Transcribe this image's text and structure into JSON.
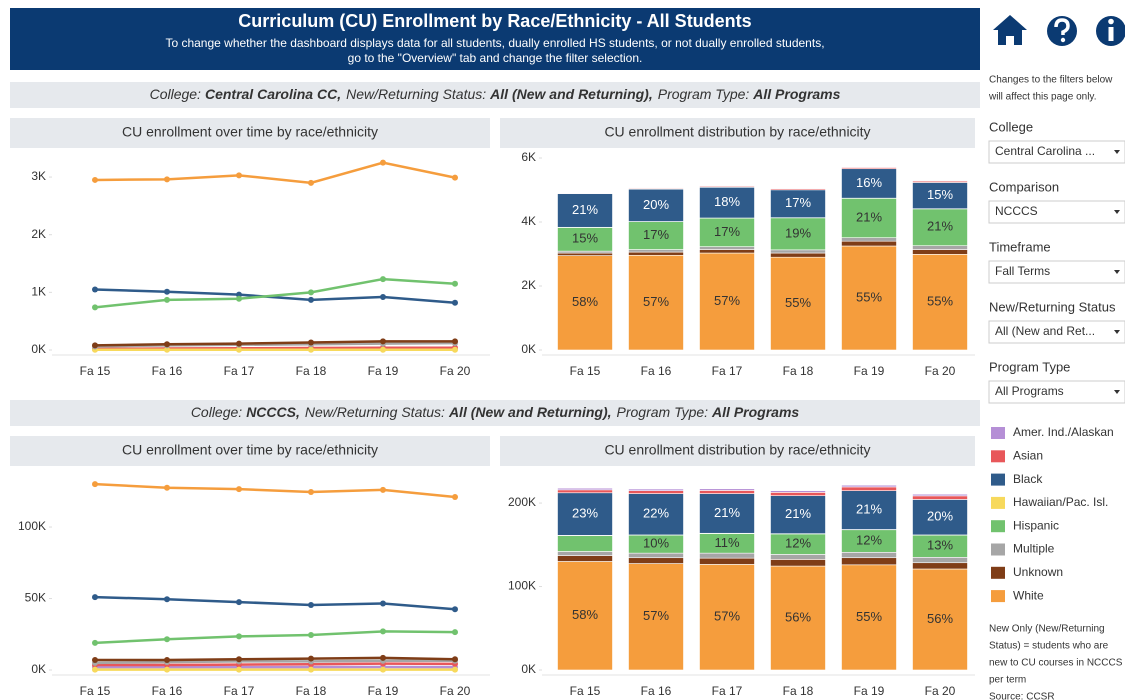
{
  "header": {
    "title": "Curriculum (CU) Enrollment by Race/Ethnicity - All Students",
    "subtitle": [
      "To change whether the dashboard displays data for all students, dually enrolled HS students, or not dually enrolled students,",
      "go to the \"Overview\" tab and change the filter selection."
    ]
  },
  "sections": [
    {
      "segments": [
        {
          "label": "College:",
          "value": "Central Carolina CC,"
        },
        {
          "label": "New/Returning Status:",
          "value": "All (New and Returning),"
        },
        {
          "label": "Program Type:",
          "value": "All Programs"
        }
      ]
    },
    {
      "segments": [
        {
          "label": "College:",
          "value": "NCCCS,"
        },
        {
          "label": "New/Returning Status:",
          "value": "All (New and Returning),"
        },
        {
          "label": "Program Type:",
          "value": "All Programs"
        }
      ]
    }
  ],
  "sidebar": {
    "note": [
      "Changes to the filters below",
      "will affect this page only."
    ],
    "filters": [
      {
        "label": "College",
        "value": "Central Carolina ..."
      },
      {
        "label": "Comparison",
        "value": "NCCCS"
      },
      {
        "label": "Timeframe",
        "value": "Fall Terms"
      },
      {
        "label": "New/Returning Status",
        "value": "All (New and Ret..."
      },
      {
        "label": "Program Type",
        "value": "All Programs"
      }
    ],
    "footnote": [
      "New Only (New/Returning",
      "Status) = students who are",
      "new to CU courses in NCCCS",
      "per term",
      "Source: CCSR"
    ]
  },
  "chart_data": [
    {
      "type": "line",
      "title": "CU enrollment over time by race/ethnicity",
      "categories": [
        "Fa 15",
        "Fa 16",
        "Fa 17",
        "Fa 18",
        "Fa 19",
        "Fa 20"
      ],
      "ylim": [
        0,
        3400
      ],
      "yticks": [
        {
          "value": 0,
          "label": "0K"
        },
        {
          "value": 1000,
          "label": "1K"
        },
        {
          "value": 2000,
          "label": "2K"
        },
        {
          "value": 3000,
          "label": "3K"
        }
      ],
      "grid": false,
      "series": [
        {
          "name": "Amer. Ind./Alaskan",
          "color": "#b58fd6",
          "values": [
            10,
            15,
            15,
            20,
            20,
            20
          ]
        },
        {
          "name": "Asian",
          "color": "#e8575a",
          "values": [
            20,
            25,
            30,
            35,
            40,
            40
          ]
        },
        {
          "name": "Black",
          "color": "#2f5b8a",
          "values": [
            1050,
            1010,
            960,
            870,
            920,
            820
          ]
        },
        {
          "name": "Hawaiian/Pac. Isl.",
          "color": "#f7d95c",
          "values": [
            5,
            5,
            5,
            5,
            5,
            5
          ]
        },
        {
          "name": "Hispanic",
          "color": "#71c26e",
          "values": [
            740,
            870,
            890,
            1000,
            1230,
            1150
          ]
        },
        {
          "name": "Multiple",
          "color": "#a6a6a6",
          "values": [
            60,
            80,
            90,
            100,
            110,
            120
          ]
        },
        {
          "name": "Unknown",
          "color": "#7f3d17",
          "values": [
            80,
            100,
            110,
            130,
            150,
            150
          ]
        },
        {
          "name": "White",
          "color": "#f59d3d",
          "values": [
            2950,
            2960,
            3030,
            2900,
            3250,
            2990
          ]
        }
      ]
    },
    {
      "type": "bar",
      "title": "CU enrollment distribution by race/ethnicity",
      "stacked": true,
      "categories": [
        "Fa 15",
        "Fa 16",
        "Fa 17",
        "Fa 18",
        "Fa 19",
        "Fa 20"
      ],
      "ylim": [
        0,
        6000
      ],
      "yticks": [
        {
          "value": 0,
          "label": "0K"
        },
        {
          "value": 2000,
          "label": "2K"
        },
        {
          "value": 4000,
          "label": "4K"
        },
        {
          "value": 6000,
          "label": "6K"
        }
      ],
      "grid": false,
      "series": [
        {
          "name": "Amer. Ind./Alaskan",
          "color": "#b58fd6",
          "values": [
            10,
            15,
            15,
            20,
            20,
            20
          ]
        },
        {
          "name": "Asian",
          "color": "#e8575a",
          "values": [
            20,
            25,
            30,
            35,
            40,
            40
          ]
        },
        {
          "name": "Black",
          "color": "#2f5b8a",
          "values": [
            1050,
            1010,
            960,
            870,
            920,
            820
          ],
          "share_labels": [
            "21%",
            "20%",
            "18%",
            "17%",
            "16%",
            "15%"
          ]
        },
        {
          "name": "Hawaiian/Pac. Isl.",
          "color": "#f7d95c",
          "values": [
            5,
            5,
            5,
            5,
            5,
            5
          ]
        },
        {
          "name": "Hispanic",
          "color": "#71c26e",
          "values": [
            740,
            870,
            890,
            1000,
            1230,
            1150
          ],
          "share_labels": [
            "15%",
            "17%",
            "17%",
            "19%",
            "21%",
            "21%"
          ]
        },
        {
          "name": "Multiple",
          "color": "#a6a6a6",
          "values": [
            60,
            80,
            90,
            100,
            110,
            120
          ]
        },
        {
          "name": "Unknown",
          "color": "#7f3d17",
          "values": [
            80,
            100,
            110,
            130,
            150,
            150
          ]
        },
        {
          "name": "White",
          "color": "#f59d3d",
          "values": [
            2950,
            2960,
            3030,
            2900,
            3250,
            2990
          ],
          "share_labels": [
            "58%",
            "57%",
            "57%",
            "55%",
            "55%",
            "55%"
          ]
        }
      ]
    },
    {
      "type": "line",
      "title": "CU enrollment over time by race/ethnicity",
      "categories": [
        "Fa 15",
        "Fa 16",
        "Fa 17",
        "Fa 18",
        "Fa 19",
        "Fa 20"
      ],
      "ylim": [
        0,
        135000
      ],
      "yticks": [
        {
          "value": 0,
          "label": "0K"
        },
        {
          "value": 50000,
          "label": "50K"
        },
        {
          "value": 100000,
          "label": "100K"
        }
      ],
      "grid": false,
      "series": [
        {
          "name": "Amer. Ind./Alaskan",
          "color": "#b58fd6",
          "values": [
            2000,
            2000,
            2000,
            2000,
            2100,
            2000
          ]
        },
        {
          "name": "Asian",
          "color": "#e8575a",
          "values": [
            3500,
            3500,
            3800,
            4000,
            4500,
            4300
          ]
        },
        {
          "name": "Black",
          "color": "#2f5b8a",
          "values": [
            51000,
            49500,
            47500,
            45500,
            46500,
            42500
          ]
        },
        {
          "name": "Hawaiian/Pac. Isl.",
          "color": "#f7d95c",
          "values": [
            300,
            300,
            300,
            300,
            300,
            300
          ]
        },
        {
          "name": "Hispanic",
          "color": "#71c26e",
          "values": [
            19000,
            21500,
            23500,
            24500,
            27000,
            26500
          ]
        },
        {
          "name": "Multiple",
          "color": "#a6a6a6",
          "values": [
            5000,
            5500,
            6000,
            6000,
            6500,
            6500
          ]
        },
        {
          "name": "Unknown",
          "color": "#7f3d17",
          "values": [
            7000,
            7000,
            7500,
            8000,
            8500,
            7500
          ]
        },
        {
          "name": "White",
          "color": "#f59d3d",
          "values": [
            130000,
            127500,
            126500,
            124500,
            126000,
            121000
          ]
        }
      ]
    },
    {
      "type": "bar",
      "title": "CU enrollment distribution by race/ethnicity",
      "stacked": true,
      "categories": [
        "Fa 15",
        "Fa 16",
        "Fa 17",
        "Fa 18",
        "Fa 19",
        "Fa 20"
      ],
      "ylim": [
        0,
        230000
      ],
      "yticks": [
        {
          "value": 0,
          "label": "0K"
        },
        {
          "value": 100000,
          "label": "100K"
        },
        {
          "value": 200000,
          "label": "200K"
        }
      ],
      "grid": false,
      "series": [
        {
          "name": "Amer. Ind./Alaskan",
          "color": "#b58fd6",
          "values": [
            2000,
            2000,
            2000,
            2000,
            2100,
            2000
          ]
        },
        {
          "name": "Asian",
          "color": "#e8575a",
          "values": [
            3500,
            3500,
            3800,
            4000,
            4500,
            4300
          ]
        },
        {
          "name": "Black",
          "color": "#2f5b8a",
          "values": [
            51000,
            49500,
            47500,
            45500,
            46500,
            42500
          ],
          "share_labels": [
            "23%",
            "22%",
            "21%",
            "21%",
            "21%",
            "20%"
          ]
        },
        {
          "name": "Hawaiian/Pac. Isl.",
          "color": "#f7d95c",
          "values": [
            300,
            300,
            300,
            300,
            300,
            300
          ]
        },
        {
          "name": "Hispanic",
          "color": "#71c26e",
          "values": [
            19000,
            21500,
            23500,
            24500,
            27000,
            26500
          ],
          "share_labels": [
            null,
            "10%",
            "11%",
            "12%",
            "12%",
            "13%"
          ]
        },
        {
          "name": "Multiple",
          "color": "#a6a6a6",
          "values": [
            5000,
            5500,
            6000,
            6000,
            6500,
            6500
          ]
        },
        {
          "name": "Unknown",
          "color": "#7f3d17",
          "values": [
            7000,
            7000,
            7500,
            8000,
            8500,
            7500
          ]
        },
        {
          "name": "White",
          "color": "#f59d3d",
          "values": [
            130000,
            127500,
            126500,
            124500,
            126000,
            121000
          ],
          "share_labels": [
            "58%",
            "57%",
            "57%",
            "56%",
            "55%",
            "56%"
          ]
        }
      ]
    }
  ]
}
